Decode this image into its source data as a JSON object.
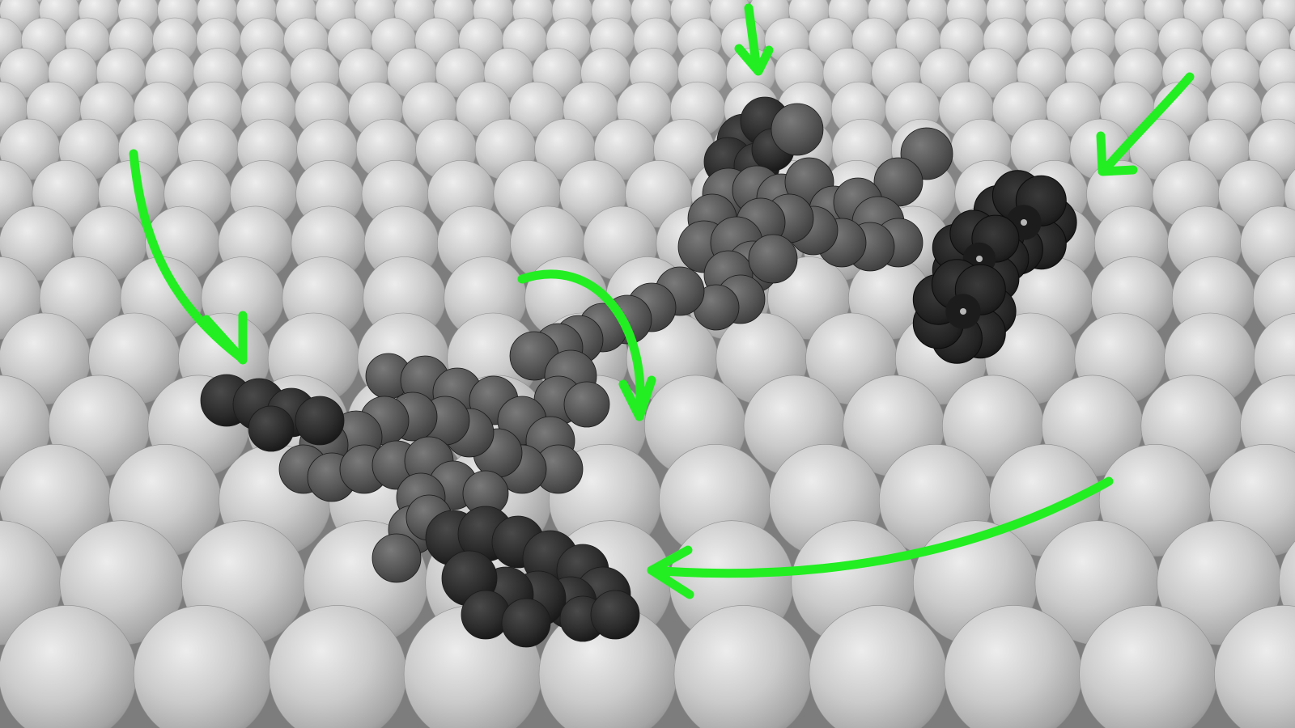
{
  "scene": {
    "kind": "molecular-rendering",
    "surface": {
      "lattice": "close-packed-spheres",
      "sphere_color": "#c9c9c9"
    },
    "molecule": {
      "groups": [
        {
          "name": "top-left-end-group",
          "shade": "#2e2e2e"
        },
        {
          "name": "upper-body",
          "shade": "#4d4d4d"
        },
        {
          "name": "bridge-chain",
          "shade": "#505050"
        },
        {
          "name": "lower-body",
          "shade": "#525252"
        },
        {
          "name": "left-end-group",
          "shade": "#262626"
        },
        {
          "name": "bottom-end-group",
          "shade": "#262626"
        },
        {
          "name": "flower-groups",
          "shade": "#1f1f1f",
          "count": 3
        }
      ]
    },
    "arrows": {
      "color": "#22ee22",
      "items": [
        {
          "name": "left-curved-arrow"
        },
        {
          "name": "center-curved-arrow"
        },
        {
          "name": "top-down-arrow"
        },
        {
          "name": "top-right-arrow"
        },
        {
          "name": "bottom-sweep-arrow"
        }
      ]
    }
  }
}
